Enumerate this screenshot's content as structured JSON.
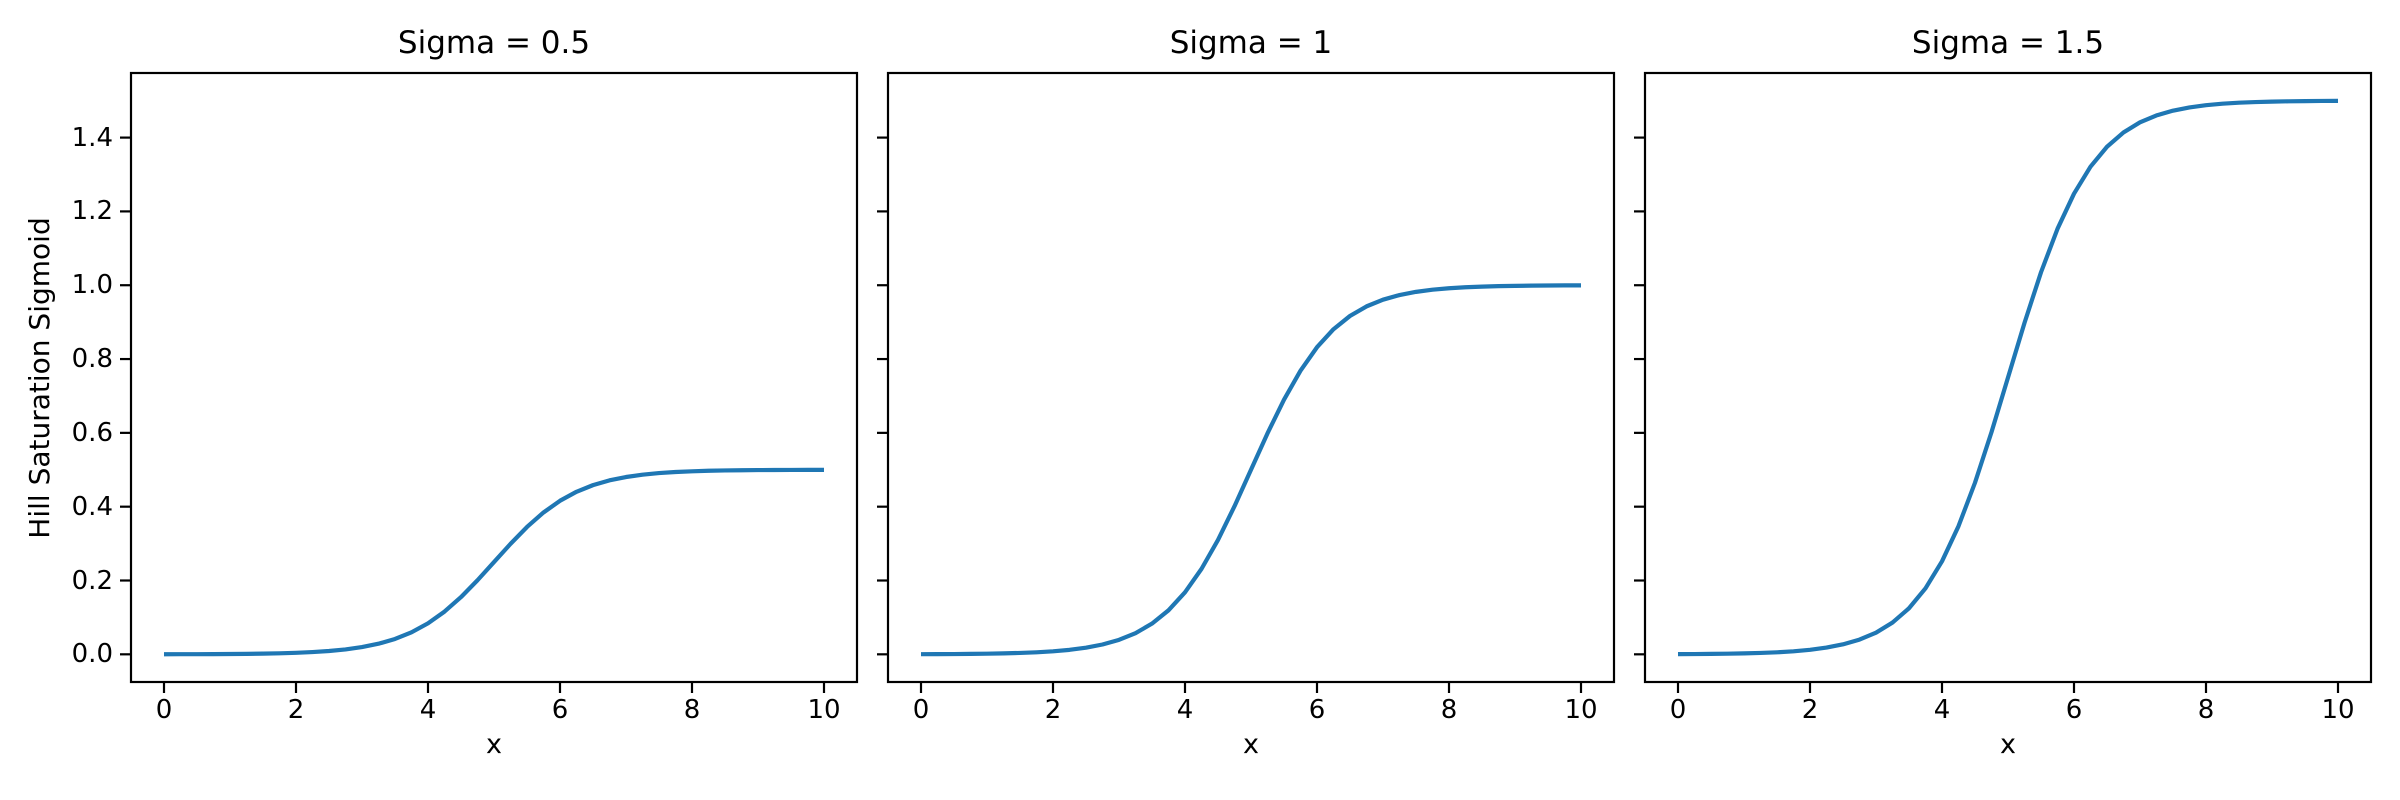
{
  "figure": {
    "background": "#ffffff",
    "axis_color": "#000000",
    "line_color": "#1f77b4",
    "ylabel": "Hill Saturation Sigmoid"
  },
  "chart_data": [
    {
      "type": "line",
      "title": "Sigma = 0.5",
      "sigma": 0.5,
      "xlabel": "x",
      "ylabel": "Hill Saturation Sigmoid",
      "xlim": [
        -0.5,
        10.5
      ],
      "ylim": [
        -0.075,
        1.575
      ],
      "xticks": [
        0,
        2,
        4,
        6,
        8,
        10
      ],
      "yticks": [
        0.0,
        0.2,
        0.4,
        0.6,
        0.8,
        1.0,
        1.2,
        1.4
      ],
      "ytick_labels": [
        "0.0",
        "0.2",
        "0.4",
        "0.6",
        "0.8",
        "1.0",
        "1.2",
        "1.4"
      ],
      "show_ytick_labels": true,
      "grid": false,
      "line_color": "#1f77b4",
      "x": [
        0,
        0.25,
        0.5,
        0.75,
        1,
        1.25,
        1.5,
        1.75,
        2,
        2.25,
        2.5,
        2.75,
        3,
        3.25,
        3.5,
        3.75,
        4,
        4.25,
        4.5,
        4.75,
        5,
        5.25,
        5.5,
        5.75,
        6,
        6.25,
        6.5,
        6.75,
        7,
        7.25,
        7.5,
        7.75,
        8,
        8.25,
        8.5,
        8.75,
        9,
        9.25,
        9.5,
        9.75,
        10
      ],
      "y": [
        0.0002,
        0.0003,
        0.0004,
        0.0006,
        0.0008,
        0.0012,
        0.0018,
        0.0027,
        0.0041,
        0.0061,
        0.009,
        0.0133,
        0.0196,
        0.0287,
        0.0416,
        0.0596,
        0.084,
        0.1157,
        0.155,
        0.2007,
        0.25,
        0.2993,
        0.345,
        0.3843,
        0.416,
        0.4404,
        0.4584,
        0.4713,
        0.4804,
        0.4867,
        0.491,
        0.4939,
        0.4959,
        0.4973,
        0.4982,
        0.4988,
        0.4992,
        0.4994,
        0.4996,
        0.4998,
        0.4998
      ]
    },
    {
      "type": "line",
      "title": "Sigma = 1",
      "sigma": 1,
      "xlabel": "x",
      "ylabel": "",
      "xlim": [
        -0.5,
        10.5
      ],
      "ylim": [
        -0.075,
        1.575
      ],
      "xticks": [
        0,
        2,
        4,
        6,
        8,
        10
      ],
      "yticks": [
        0.0,
        0.2,
        0.4,
        0.6,
        0.8,
        1.0,
        1.2,
        1.4
      ],
      "ytick_labels": [],
      "show_ytick_labels": false,
      "grid": false,
      "line_color": "#1f77b4",
      "x": [
        0,
        0.25,
        0.5,
        0.75,
        1,
        1.25,
        1.5,
        1.75,
        2,
        2.25,
        2.5,
        2.75,
        3,
        3.25,
        3.5,
        3.75,
        4,
        4.25,
        4.5,
        4.75,
        5,
        5.25,
        5.5,
        5.75,
        6,
        6.25,
        6.5,
        6.75,
        7,
        7.25,
        7.5,
        7.75,
        8,
        8.25,
        8.5,
        8.75,
        9,
        9.25,
        9.5,
        9.75,
        10
      ],
      "y": [
        0.0003,
        0.0005,
        0.0007,
        0.0011,
        0.0017,
        0.0025,
        0.0037,
        0.0055,
        0.0082,
        0.0121,
        0.018,
        0.0266,
        0.0392,
        0.0573,
        0.0832,
        0.1192,
        0.168,
        0.2315,
        0.31,
        0.4013,
        0.5,
        0.5987,
        0.69,
        0.7685,
        0.832,
        0.8808,
        0.9168,
        0.9427,
        0.9608,
        0.9734,
        0.982,
        0.9879,
        0.9918,
        0.9945,
        0.9963,
        0.9975,
        0.9983,
        0.9989,
        0.9993,
        0.9995,
        0.9997
      ]
    },
    {
      "type": "line",
      "title": "Sigma = 1.5",
      "sigma": 1.5,
      "xlabel": "x",
      "ylabel": "",
      "xlim": [
        -0.5,
        10.5
      ],
      "ylim": [
        -0.075,
        1.575
      ],
      "xticks": [
        0,
        2,
        4,
        6,
        8,
        10
      ],
      "yticks": [
        0.0,
        0.2,
        0.4,
        0.6,
        0.8,
        1.0,
        1.2,
        1.4
      ],
      "ytick_labels": [],
      "show_ytick_labels": false,
      "grid": false,
      "line_color": "#1f77b4",
      "x": [
        0,
        0.25,
        0.5,
        0.75,
        1,
        1.25,
        1.5,
        1.75,
        2,
        2.25,
        2.5,
        2.75,
        3,
        3.25,
        3.5,
        3.75,
        4,
        4.25,
        4.5,
        4.75,
        5,
        5.25,
        5.5,
        5.75,
        6,
        6.25,
        6.5,
        6.75,
        7,
        7.25,
        7.5,
        7.75,
        8,
        8.25,
        8.5,
        8.75,
        9,
        9.25,
        9.5,
        9.75,
        10
      ],
      "y": [
        0.0005,
        0.0007,
        0.0011,
        0.0017,
        0.0025,
        0.0037,
        0.0055,
        0.0082,
        0.0122,
        0.0182,
        0.027,
        0.0399,
        0.0587,
        0.086,
        0.1248,
        0.1788,
        0.252,
        0.3472,
        0.465,
        0.602,
        0.75,
        0.898,
        1.035,
        1.1528,
        1.248,
        1.3212,
        1.3752,
        1.414,
        1.4413,
        1.4601,
        1.473,
        1.4818,
        1.4878,
        1.4918,
        1.4945,
        1.4963,
        1.4975,
        1.4983,
        1.4989,
        1.4993,
        1.4995
      ]
    }
  ]
}
